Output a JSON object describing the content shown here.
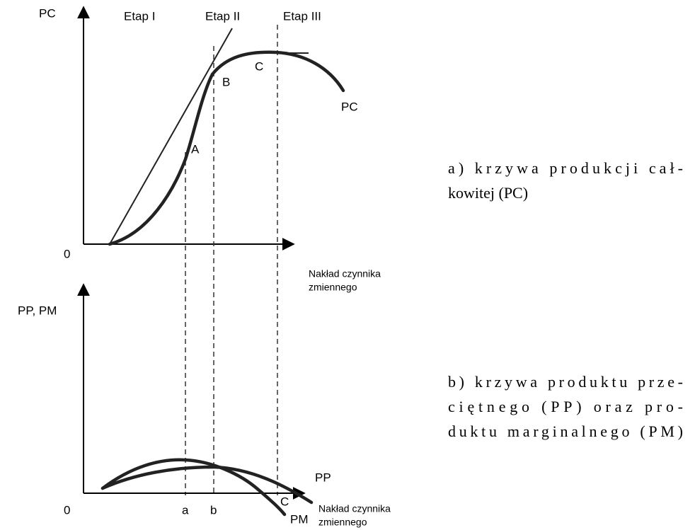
{
  "top_panel": {
    "y_axis_label": "PC",
    "stages": [
      "Etap I",
      "Etap II",
      "Etap III"
    ],
    "points": [
      "A",
      "B",
      "C"
    ],
    "curve_label": "PC",
    "origin": "0",
    "x_axis_label": [
      "Nakład czynnika",
      "zmiennego"
    ]
  },
  "bottom_panel": {
    "y_axis_label": "PP, PM",
    "origin": "0",
    "x_marks": [
      "a",
      "b"
    ],
    "curve_labels": [
      "PP",
      "PM"
    ],
    "point": "C",
    "x_axis_label": [
      "Nakład czynnika",
      "zmiennego"
    ]
  },
  "captions": {
    "a": [
      "a) krzywa produkcji cał-",
      "kowitej (PC)"
    ],
    "b": [
      "b) krzywa produktu prze-",
      "ciętnego (PP) oraz pro-",
      "duktu marginalnego (PM)"
    ]
  }
}
